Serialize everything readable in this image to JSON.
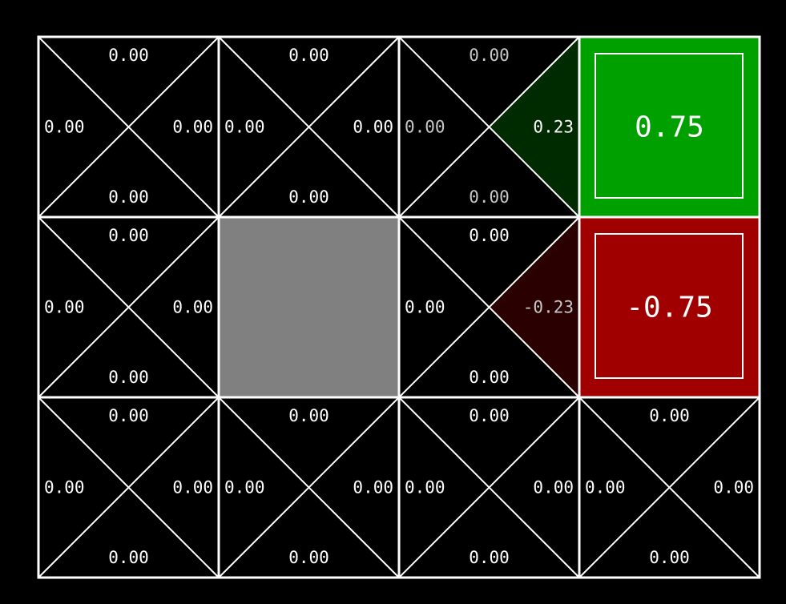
{
  "grid": {
    "rows": 3,
    "cols": 4,
    "line_color": "#ffffff",
    "background_color": "#000000",
    "wall_color": "#808080",
    "positive_color": "#00a000",
    "negative_color": "#a00000"
  },
  "cells": [
    {
      "row": 0,
      "col": 0,
      "type": "state",
      "q": {
        "up": "0.00",
        "right": "0.00",
        "down": "0.00",
        "left": "0.00"
      }
    },
    {
      "row": 0,
      "col": 1,
      "type": "state",
      "q": {
        "up": "0.00",
        "right": "0.00",
        "down": "0.00",
        "left": "0.00"
      }
    },
    {
      "row": 0,
      "col": 2,
      "type": "state",
      "dim": true,
      "q": {
        "up": "0.00",
        "right": "0.23",
        "down": "0.00",
        "left": "0.00"
      },
      "q_num": {
        "up": 0,
        "right": 0.23,
        "down": 0,
        "left": 0
      }
    },
    {
      "row": 0,
      "col": 3,
      "type": "terminal",
      "value": "0.75",
      "value_num": 0.75
    },
    {
      "row": 1,
      "col": 0,
      "type": "state",
      "q": {
        "up": "0.00",
        "right": "0.00",
        "down": "0.00",
        "left": "0.00"
      }
    },
    {
      "row": 1,
      "col": 1,
      "type": "wall"
    },
    {
      "row": 1,
      "col": 2,
      "type": "state",
      "q": {
        "up": "0.00",
        "right": "-0.23",
        "down": "0.00",
        "left": "0.00"
      },
      "q_num": {
        "up": 0,
        "right": -0.23,
        "down": 0,
        "left": 0
      }
    },
    {
      "row": 1,
      "col": 3,
      "type": "terminal",
      "value": "-0.75",
      "value_num": -0.75
    },
    {
      "row": 2,
      "col": 0,
      "type": "state",
      "q": {
        "up": "0.00",
        "right": "0.00",
        "down": "0.00",
        "left": "0.00"
      }
    },
    {
      "row": 2,
      "col": 1,
      "type": "state",
      "q": {
        "up": "0.00",
        "right": "0.00",
        "down": "0.00",
        "left": "0.00"
      }
    },
    {
      "row": 2,
      "col": 2,
      "type": "state",
      "q": {
        "up": "0.00",
        "right": "0.00",
        "down": "0.00",
        "left": "0.00"
      }
    },
    {
      "row": 2,
      "col": 3,
      "type": "state",
      "q": {
        "up": "0.00",
        "right": "0.00",
        "down": "0.00",
        "left": "0.00"
      }
    }
  ]
}
